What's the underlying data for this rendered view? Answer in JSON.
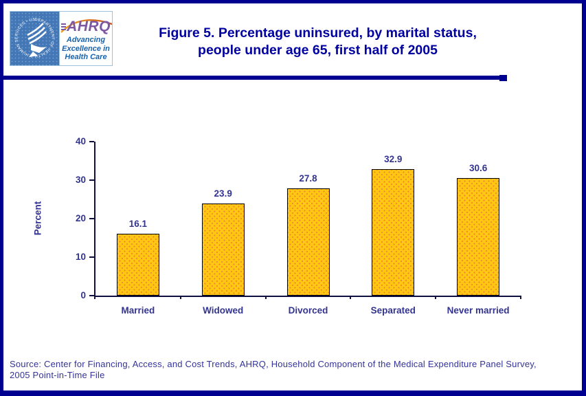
{
  "header": {
    "title_line1": "Figure 5. Percentage uninsured, by marital status,",
    "title_line2": "people under age 65, first half of 2005",
    "logo": {
      "hhs_seal_text": "DEPARTMENT OF HEALTH & HUMAN SERVICES • USA",
      "ahrq_acronym": "AHRQ",
      "tagline_lines": [
        "Advancing",
        "Excellence in",
        "Health Care"
      ]
    }
  },
  "chart_data": {
    "type": "bar",
    "title": "Figure 5. Percentage uninsured, by marital status, people under age 65, first half of 2005",
    "categories": [
      "Married",
      "Widowed",
      "Divorced",
      "Separated",
      "Never married"
    ],
    "values": [
      16.1,
      23.9,
      27.8,
      32.9,
      30.6
    ],
    "xlabel": "",
    "ylabel": "Percent",
    "ylim": [
      0,
      40
    ],
    "yticks": [
      0,
      10,
      20,
      30,
      40
    ],
    "grid": false,
    "legend": "none",
    "colors": {
      "bar_fill": "#FFC613",
      "bar_dot": "#EE7F2D",
      "bar_border": "#000000",
      "axis": "#101040",
      "chart_text": "#333390",
      "title_text": "#0000A0",
      "page_border": "#000090"
    }
  },
  "footer": {
    "source_line1": "Source: Center for Financing, Access, and Cost Trends, AHRQ, Household Component of the Medical Expenditure Panel Survey,",
    "source_line2": "2005 Point-in-Time File"
  }
}
